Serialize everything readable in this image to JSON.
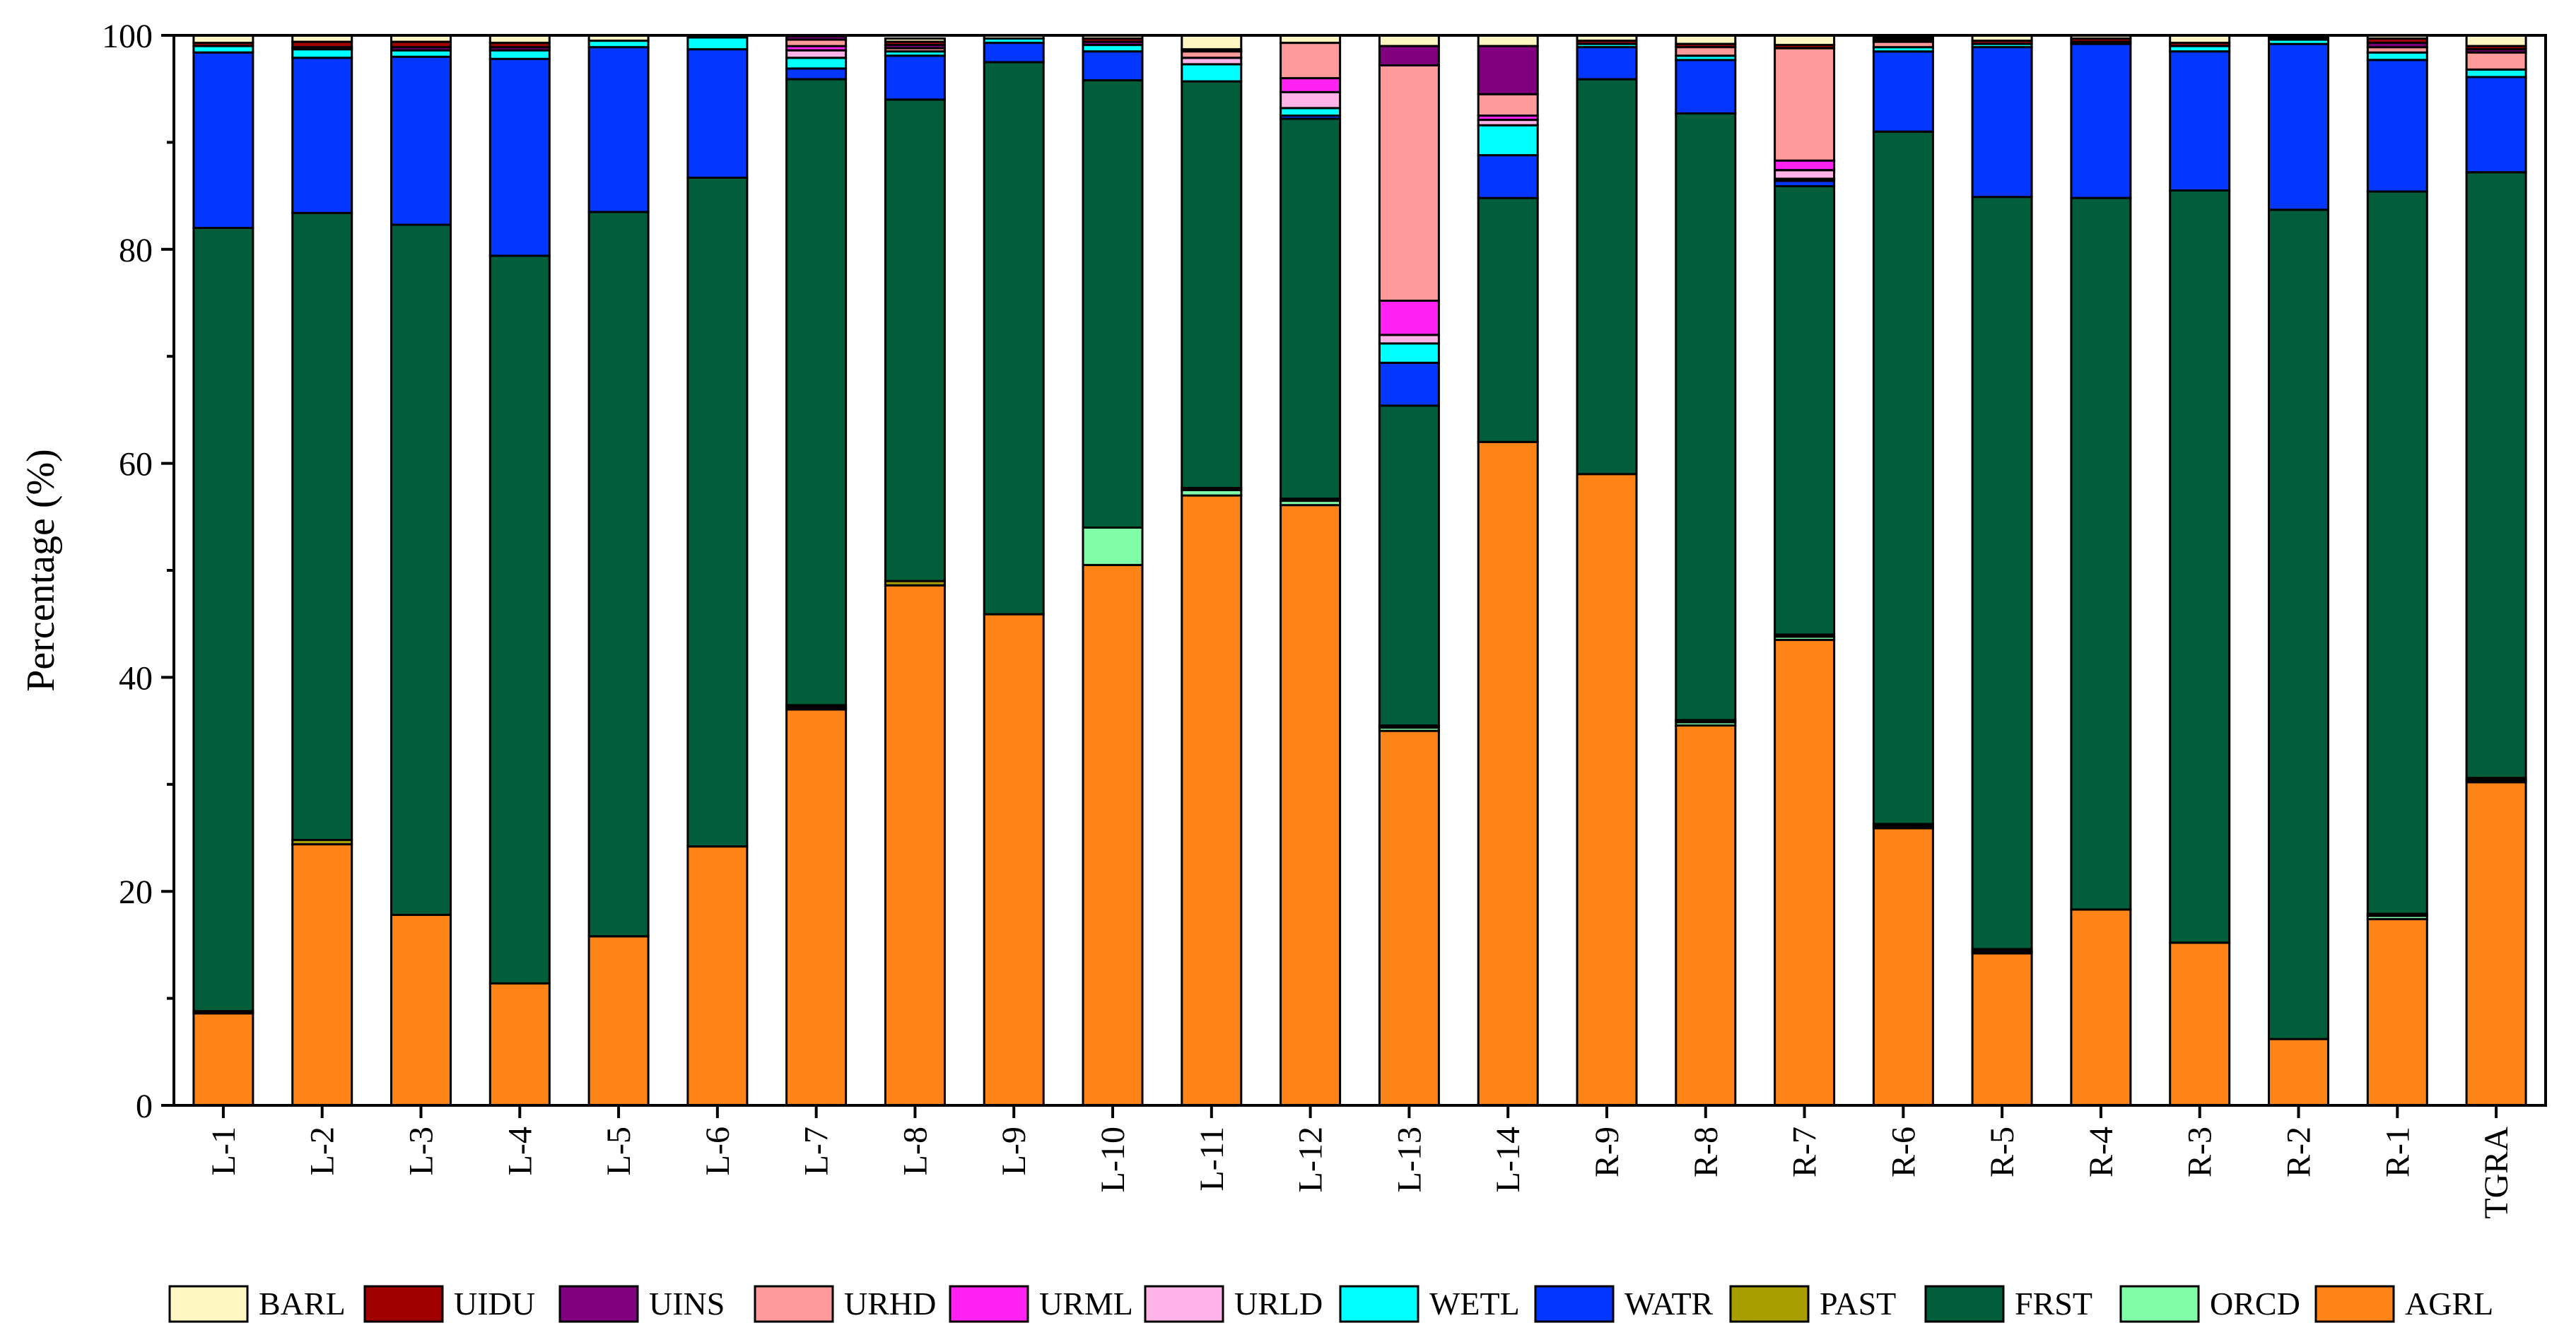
{
  "chart_data": {
    "type": "bar",
    "stacked": true,
    "xlabel": "",
    "ylabel": "Percentage (%)",
    "ylim": [
      0,
      100
    ],
    "yticks": [
      0,
      20,
      40,
      60,
      80,
      100
    ],
    "grid": false,
    "legend_position": "bottom",
    "categories": [
      "L-1",
      "L-2",
      "L-3",
      "L-4",
      "L-5",
      "L-6",
      "L-7",
      "L-8",
      "L-9",
      "L-10",
      "L-11",
      "L-12",
      "L-13",
      "L-14",
      "R-9",
      "R-8",
      "R-7",
      "R-6",
      "R-5",
      "R-4",
      "R-3",
      "R-2",
      "R-1",
      "TGRA"
    ],
    "series": [
      {
        "name": "AGRL",
        "color": "#FF8418",
        "values": [
          8.6,
          24.4,
          17.8,
          11.4,
          15.8,
          24.2,
          37.0,
          48.6,
          45.9,
          50.5,
          57.0,
          56.1,
          35.0,
          62.0,
          59.0,
          35.5,
          43.5,
          25.9,
          14.2,
          18.3,
          15.2,
          6.2,
          17.4,
          30.2
        ]
      },
      {
        "name": "ORCD",
        "color": "#80FFA8",
        "values": [
          0.0,
          0.0,
          0.0,
          0.0,
          0.0,
          0.0,
          0.2,
          0.0,
          0.0,
          3.5,
          0.5,
          0.4,
          0.3,
          0.0,
          0.0,
          0.3,
          0.3,
          0.2,
          0.2,
          0.0,
          0.0,
          0.0,
          0.3,
          0.2
        ]
      },
      {
        "name": "PAST",
        "color": "#A89E00",
        "values": [
          0.2,
          0.4,
          0.0,
          0.0,
          0.0,
          0.0,
          0.2,
          0.4,
          0.0,
          0.0,
          0.2,
          0.2,
          0.2,
          0.0,
          0.0,
          0.2,
          0.2,
          0.2,
          0.2,
          0.0,
          0.0,
          0.0,
          0.2,
          0.2
        ]
      },
      {
        "name": "FRST",
        "color": "#005E3A",
        "values": [
          73.2,
          58.6,
          64.5,
          68.0,
          67.7,
          62.5,
          58.5,
          45.0,
          51.6,
          41.8,
          38.0,
          35.5,
          29.9,
          22.8,
          36.9,
          56.7,
          41.9,
          64.7,
          70.3,
          66.5,
          70.3,
          77.5,
          67.5,
          56.6
        ]
      },
      {
        "name": "WATR",
        "color": "#0336FF",
        "values": [
          16.4,
          14.5,
          15.7,
          18.4,
          15.4,
          12.0,
          1.0,
          4.1,
          1.8,
          2.7,
          0.0,
          0.3,
          4.0,
          4.0,
          3.0,
          5.0,
          0.5,
          7.5,
          14.0,
          14.4,
          13.0,
          15.5,
          12.3,
          8.9
        ]
      },
      {
        "name": "WETL",
        "color": "#00FFFF",
        "values": [
          0.6,
          0.8,
          0.6,
          0.8,
          0.6,
          1.1,
          1.0,
          0.4,
          0.4,
          0.6,
          1.6,
          0.7,
          1.8,
          2.8,
          0.3,
          0.4,
          0.2,
          0.4,
          0.3,
          0.2,
          0.5,
          0.4,
          0.7,
          0.7
        ]
      },
      {
        "name": "URLD",
        "color": "#FFB3E6",
        "values": [
          0.0,
          0.0,
          0.0,
          0.0,
          0.0,
          0.0,
          0.7,
          0.0,
          0.0,
          0.0,
          0.6,
          1.5,
          0.8,
          0.5,
          0.0,
          0.0,
          0.8,
          0.0,
          0.0,
          0.0,
          0.0,
          0.0,
          0.0,
          0.0
        ]
      },
      {
        "name": "URML",
        "color": "#FF22F2",
        "values": [
          0.0,
          0.0,
          0.0,
          0.0,
          0.0,
          0.0,
          0.4,
          0.0,
          0.0,
          0.0,
          0.0,
          1.3,
          3.2,
          0.4,
          0.0,
          0.0,
          0.9,
          0.0,
          0.0,
          0.0,
          0.0,
          0.0,
          0.0,
          0.0
        ]
      },
      {
        "name": "URHD",
        "color": "#FF9A9A",
        "values": [
          0.0,
          0.0,
          0.0,
          0.0,
          0.0,
          0.0,
          0.6,
          0.3,
          0.0,
          0.0,
          0.6,
          3.3,
          22.0,
          2.0,
          0.0,
          0.8,
          10.5,
          0.5,
          0.0,
          0.0,
          0.0,
          0.0,
          0.5,
          1.6
        ]
      },
      {
        "name": "UINS",
        "color": "#800080",
        "values": [
          0.0,
          0.2,
          0.3,
          0.3,
          0.0,
          0.0,
          0.3,
          0.3,
          0.0,
          0.3,
          0.2,
          0.0,
          1.8,
          4.5,
          0.0,
          0.0,
          0.0,
          0.2,
          0.0,
          0.0,
          0.0,
          0.0,
          0.4,
          0.3
        ]
      },
      {
        "name": "UIDU",
        "color": "#A00000",
        "values": [
          0.3,
          0.5,
          0.5,
          0.4,
          0.0,
          0.0,
          0.0,
          0.3,
          0.0,
          0.3,
          0.0,
          0.0,
          0.0,
          0.0,
          0.3,
          0.3,
          0.3,
          0.2,
          0.3,
          0.3,
          0.3,
          0.2,
          0.4,
          0.3
        ]
      },
      {
        "name": "BARL",
        "color": "#FFF6C2",
        "values": [
          0.7,
          0.6,
          0.6,
          0.7,
          0.5,
          0.2,
          0.1,
          0.3,
          0.3,
          0.3,
          1.3,
          0.7,
          1.0,
          1.0,
          0.5,
          0.8,
          0.9,
          0.2,
          0.5,
          0.3,
          0.7,
          0.2,
          0.3,
          1.0
        ]
      }
    ],
    "legend_order": [
      "BARL",
      "UIDU",
      "UINS",
      "URHD",
      "URML",
      "URLD",
      "WETL",
      "WATR",
      "PAST",
      "FRST",
      "ORCD",
      "AGRL"
    ]
  }
}
